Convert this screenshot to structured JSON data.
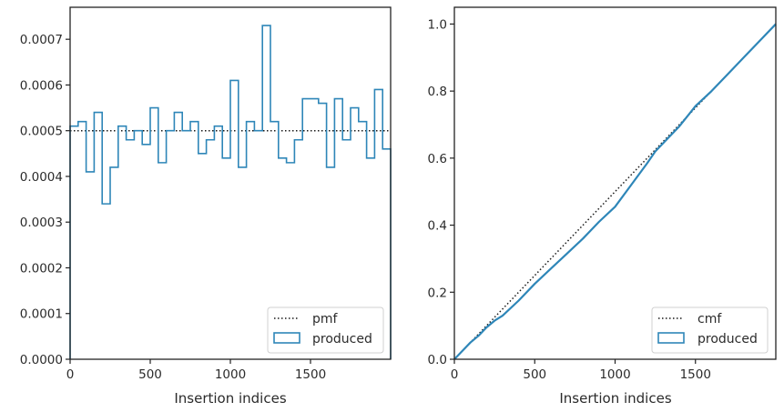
{
  "chart_data": [
    {
      "type": "histogram",
      "xlabel": "Insertion indices",
      "ylabel": "",
      "xlim": [
        0,
        2000
      ],
      "ylim": [
        0,
        0.00077
      ],
      "xticks": [
        0,
        500,
        1000,
        1500
      ],
      "xtick_labels": [
        "0",
        "500",
        "1000",
        "1500"
      ],
      "yticks": [
        0,
        0.0001,
        0.0002,
        0.0003,
        0.0004,
        0.0005,
        0.0006,
        0.0007
      ],
      "ytick_labels": [
        "0.0000",
        "0.0001",
        "0.0002",
        "0.0003",
        "0.0004",
        "0.0005",
        "0.0006",
        "0.0007"
      ],
      "grid": false,
      "legend_position": "bottom-right",
      "bin_edges": [
        0,
        50,
        100,
        150,
        200,
        250,
        300,
        350,
        400,
        450,
        500,
        550,
        600,
        650,
        700,
        750,
        800,
        850,
        900,
        950,
        1000,
        1050,
        1100,
        1150,
        1200,
        1250,
        1300,
        1350,
        1400,
        1450,
        1500,
        1550,
        1600,
        1650,
        1700,
        1750,
        1800,
        1850,
        1900,
        1950,
        2000
      ],
      "series": [
        {
          "name": "pmf",
          "style": "dotted",
          "color": "#1a1a1a",
          "value": 0.0005
        },
        {
          "name": "produced",
          "style": "step",
          "color": "#2e86b8",
          "values": [
            0.00051,
            0.00052,
            0.00041,
            0.00054,
            0.00034,
            0.00042,
            0.00051,
            0.00048,
            0.0005,
            0.00047,
            0.00055,
            0.00043,
            0.0005,
            0.00054,
            0.0005,
            0.00052,
            0.00045,
            0.00048,
            0.00051,
            0.00044,
            0.00061,
            0.00042,
            0.00052,
            0.0005,
            0.00073,
            0.00052,
            0.00044,
            0.00043,
            0.00048,
            0.00057,
            0.00057,
            0.00056,
            0.00042,
            0.00057,
            0.00048,
            0.00055,
            0.00052,
            0.00044,
            0.00059,
            0.00046
          ]
        }
      ]
    },
    {
      "type": "line",
      "xlabel": "Insertion indices",
      "ylabel": "",
      "xlim": [
        0,
        2000
      ],
      "ylim": [
        0,
        1.05
      ],
      "xticks": [
        0,
        500,
        1000,
        1500
      ],
      "xtick_labels": [
        "0",
        "500",
        "1000",
        "1500"
      ],
      "yticks": [
        0,
        0.2,
        0.4,
        0.6,
        0.8,
        1.0
      ],
      "ytick_labels": [
        "0.0",
        "0.2",
        "0.4",
        "0.6",
        "0.8",
        "1.0"
      ],
      "grid": false,
      "legend_position": "bottom-right",
      "series": [
        {
          "name": "cmf",
          "style": "dotted",
          "color": "#1a1a1a",
          "x": [
            0,
            2000
          ],
          "y": [
            0,
            1.0
          ]
        },
        {
          "name": "produced",
          "style": "line",
          "color": "#2e86b8",
          "x": [
            0,
            50,
            100,
            150,
            200,
            250,
            300,
            400,
            500,
            600,
            700,
            800,
            900,
            1000,
            1100,
            1200,
            1250,
            1300,
            1400,
            1500,
            1600,
            1700,
            1800,
            1900,
            2000
          ],
          "y": [
            0,
            0.025,
            0.05,
            0.07,
            0.095,
            0.115,
            0.13,
            0.175,
            0.225,
            0.27,
            0.315,
            0.36,
            0.41,
            0.455,
            0.52,
            0.585,
            0.62,
            0.645,
            0.695,
            0.755,
            0.8,
            0.85,
            0.9,
            0.95,
            1.0
          ]
        }
      ]
    }
  ]
}
